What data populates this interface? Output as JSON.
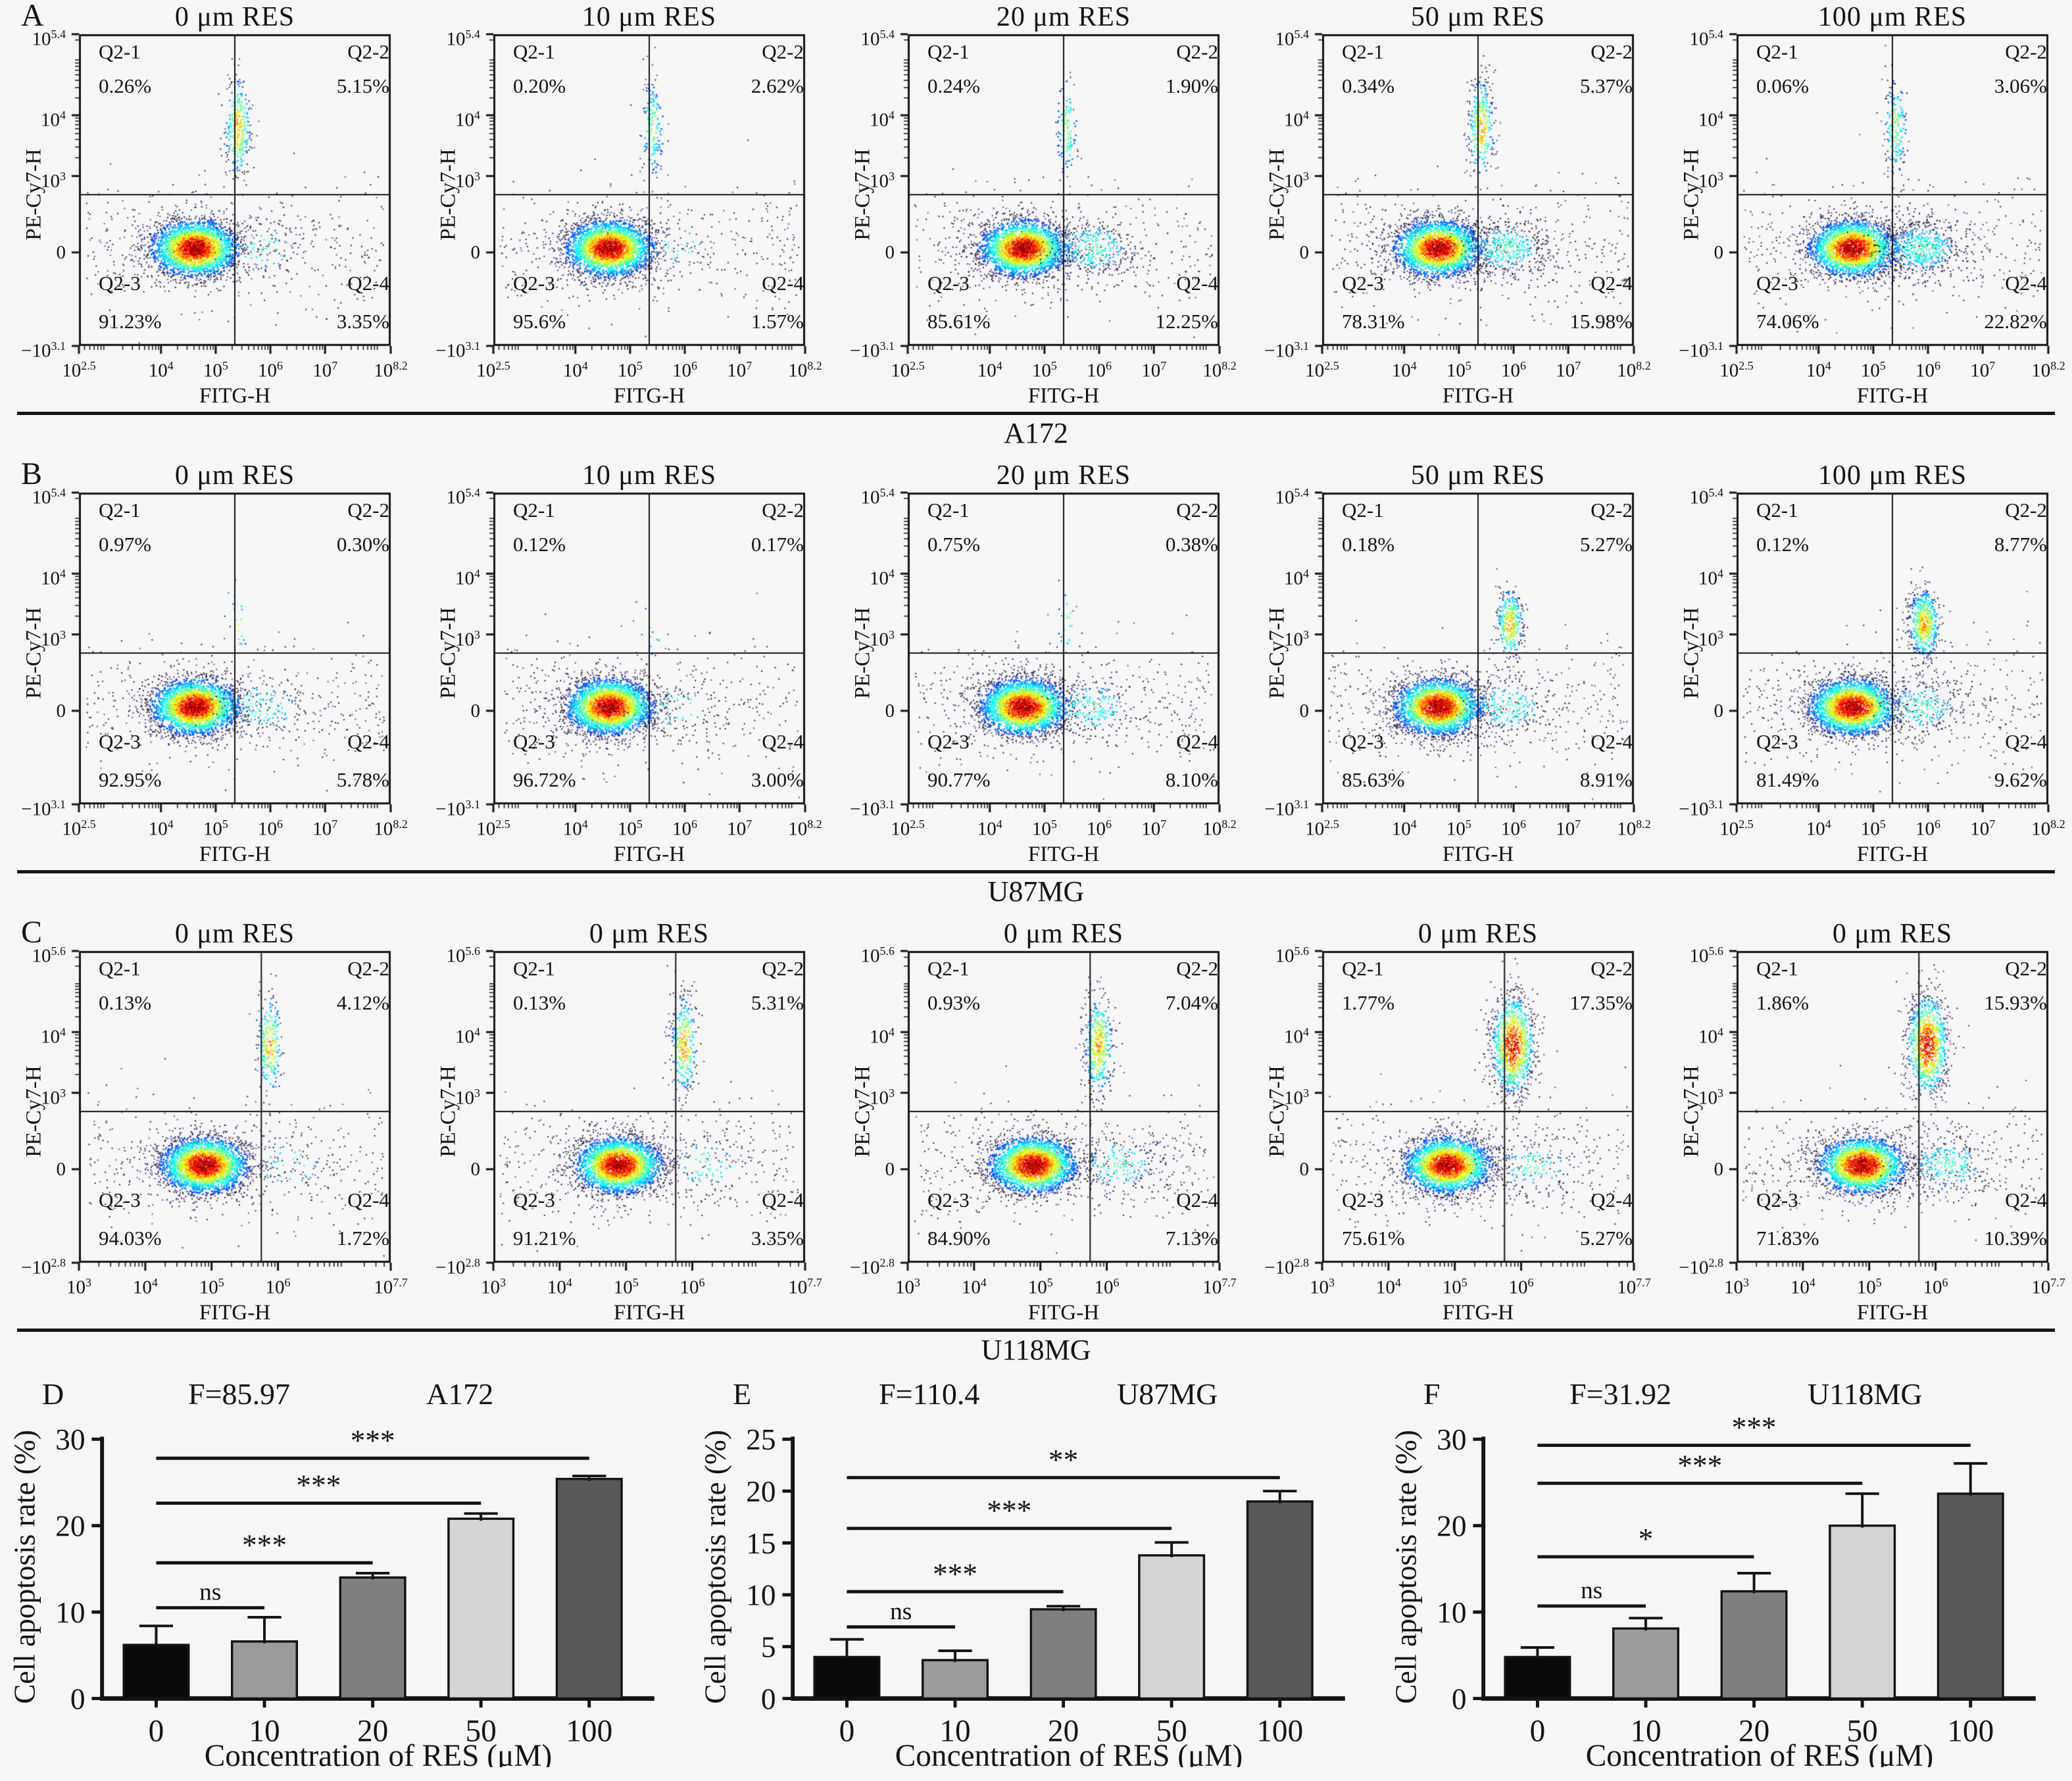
{
  "figure_background": "#f6f6f6",
  "ink_color": "#141414",
  "chart_data": [
    {
      "type": "scatter",
      "subtype": "flow-cytometry-density-plots",
      "panel": "A",
      "cell_line": "A172",
      "xlabel": "FITG-H",
      "ylabel": "PE-Cy7-H",
      "x_ticks": [
        "10^2.5",
        "10^4",
        "10^5",
        "10^6",
        "10^7",
        "10^8.2"
      ],
      "y_ticks": [
        "10^5.4",
        "10^4",
        "10^3",
        "0",
        "−10^3.1"
      ],
      "x_log_range": [
        2.5,
        8.2
      ],
      "quadrant_labels": [
        "Q2-1",
        "Q2-2",
        "Q2-3",
        "Q2-4"
      ],
      "plots": [
        {
          "title": "0 μm RES",
          "percent": [
            "0.26%",
            "5.15%",
            "91.23%",
            "3.35%"
          ]
        },
        {
          "title": "10 μm RES",
          "percent": [
            "0.20%",
            "2.62%",
            "95.6%",
            "1.57%"
          ]
        },
        {
          "title": "20 μm RES",
          "percent": [
            "0.24%",
            "1.90%",
            "85.61%",
            "12.25%"
          ]
        },
        {
          "title": "50 μm RES",
          "percent": [
            "0.34%",
            "5.37%",
            "78.31%",
            "15.98%"
          ]
        },
        {
          "title": "100 μm RES",
          "percent": [
            "0.06%",
            "3.06%",
            "74.06%",
            "22.82%"
          ]
        }
      ]
    },
    {
      "type": "scatter",
      "subtype": "flow-cytometry-density-plots",
      "panel": "B",
      "cell_line": "U87MG",
      "xlabel": "FITG-H",
      "ylabel": "PE-Cy7-H",
      "x_ticks": [
        "10^2.5",
        "10^4",
        "10^5",
        "10^6",
        "10^7",
        "10^8.2"
      ],
      "y_ticks": [
        "10^5.4",
        "10^4",
        "10^3",
        "0",
        "−10^3.1"
      ],
      "x_log_range": [
        2.5,
        8.2
      ],
      "quadrant_labels": [
        "Q2-1",
        "Q2-2",
        "Q2-3",
        "Q2-4"
      ],
      "plots": [
        {
          "title": "0 μm RES",
          "percent": [
            "0.97%",
            "0.30%",
            "92.95%",
            "5.78%"
          ]
        },
        {
          "title": "10 μm RES",
          "percent": [
            "0.12%",
            "0.17%",
            "96.72%",
            "3.00%"
          ]
        },
        {
          "title": "20 μm RES",
          "percent": [
            "0.75%",
            "0.38%",
            "90.77%",
            "8.10%"
          ]
        },
        {
          "title": "50 μm RES",
          "percent": [
            "0.18%",
            "5.27%",
            "85.63%",
            "8.91%"
          ]
        },
        {
          "title": "100 μm RES",
          "percent": [
            "0.12%",
            "8.77%",
            "81.49%",
            "9.62%"
          ]
        }
      ]
    },
    {
      "type": "scatter",
      "subtype": "flow-cytometry-density-plots",
      "panel": "C",
      "cell_line": "U118MG",
      "xlabel": "FITG-H",
      "ylabel": "PE-Cy7-H",
      "x_ticks": [
        "10^3",
        "10^4",
        "10^5",
        "10^6",
        "10^7.7"
      ],
      "y_ticks": [
        "10^5.6",
        "10^4",
        "10^3",
        "0",
        "−10^2.8"
      ],
      "x_log_range": [
        3,
        7.7
      ],
      "quadrant_labels": [
        "Q2-1",
        "Q2-2",
        "Q2-3",
        "Q2-4"
      ],
      "plots": [
        {
          "title": "0 μm RES",
          "percent": [
            "0.13%",
            "4.12%",
            "94.03%",
            "1.72%"
          ]
        },
        {
          "title": "0 μm RES",
          "percent": [
            "0.13%",
            "5.31%",
            "91.21%",
            "3.35%"
          ]
        },
        {
          "title": "0 μm RES",
          "percent": [
            "0.93%",
            "7.04%",
            "84.90%",
            "7.13%"
          ]
        },
        {
          "title": "0 μm RES",
          "percent": [
            "1.77%",
            "17.35%",
            "75.61%",
            "5.27%"
          ]
        },
        {
          "title": "0 μm RES",
          "percent": [
            "1.86%",
            "15.93%",
            "71.83%",
            "10.39%"
          ]
        }
      ]
    },
    {
      "type": "bar",
      "panel": "D",
      "f_stat": "F=85.97",
      "cell_line": "A172",
      "xlabel": "Concentration of RES (μM)",
      "ylabel": "Cell apoptosis rate (%)",
      "categories": [
        "0",
        "10",
        "20",
        "50",
        "100"
      ],
      "values": [
        6.2,
        6.6,
        14.0,
        20.8,
        25.4
      ],
      "errors": [
        2.2,
        2.8,
        0.5,
        0.6,
        0.35
      ],
      "ylim": [
        0,
        30
      ],
      "yticks": [
        0,
        10,
        20,
        30
      ],
      "bar_colors": [
        "#0b0b0b",
        "#9b9b9b",
        "#7f7f7f",
        "#d4d4d4",
        "#595959"
      ],
      "significance": [
        {
          "from": 0,
          "to": 1,
          "label": "ns",
          "y": 10.5
        },
        {
          "from": 0,
          "to": 2,
          "label": "***",
          "y": 15.7
        },
        {
          "from": 0,
          "to": 3,
          "label": "***",
          "y": 22.6
        },
        {
          "from": 0,
          "to": 4,
          "label": "***",
          "y": 27.8
        }
      ]
    },
    {
      "type": "bar",
      "panel": "E",
      "f_stat": "F=110.4",
      "cell_line": "U87MG",
      "xlabel": "Concentration of RES (μM)",
      "ylabel": "Cell apoptosis rate (%)",
      "categories": [
        "0",
        "10",
        "20",
        "50",
        "100"
      ],
      "values": [
        4.0,
        3.7,
        8.6,
        13.8,
        19.0
      ],
      "errors": [
        1.7,
        0.9,
        0.3,
        1.25,
        1.0
      ],
      "ylim": [
        0,
        25
      ],
      "yticks": [
        0,
        5,
        10,
        15,
        20,
        25
      ],
      "bar_colors": [
        "#0b0b0b",
        "#9b9b9b",
        "#7f7f7f",
        "#d4d4d4",
        "#595959"
      ],
      "significance": [
        {
          "from": 0,
          "to": 1,
          "label": "ns",
          "y": 6.9
        },
        {
          "from": 0,
          "to": 2,
          "label": "***",
          "y": 10.3
        },
        {
          "from": 0,
          "to": 3,
          "label": "***",
          "y": 16.4
        },
        {
          "from": 0,
          "to": 4,
          "label": "**",
          "y": 21.3
        }
      ]
    },
    {
      "type": "bar",
      "panel": "F",
      "f_stat": "F=31.92",
      "cell_line": "U118MG",
      "xlabel": "Concentration of RES (μM)",
      "ylabel": "Cell apoptosis rate (%)",
      "categories": [
        "0",
        "10",
        "20",
        "50",
        "100"
      ],
      "values": [
        4.8,
        8.1,
        12.4,
        20.0,
        23.7
      ],
      "errors": [
        1.1,
        1.2,
        2.1,
        3.7,
        3.5
      ],
      "ylim": [
        0,
        30
      ],
      "yticks": [
        0,
        10,
        20,
        30
      ],
      "bar_colors": [
        "#0b0b0b",
        "#9b9b9b",
        "#7f7f7f",
        "#d4d4d4",
        "#595959"
      ],
      "significance": [
        {
          "from": 0,
          "to": 1,
          "label": "ns",
          "y": 10.7
        },
        {
          "from": 0,
          "to": 2,
          "label": "*",
          "y": 16.4
        },
        {
          "from": 0,
          "to": 3,
          "label": "***",
          "y": 24.9
        },
        {
          "from": 0,
          "to": 4,
          "label": "***",
          "y": 29.3
        }
      ]
    }
  ]
}
